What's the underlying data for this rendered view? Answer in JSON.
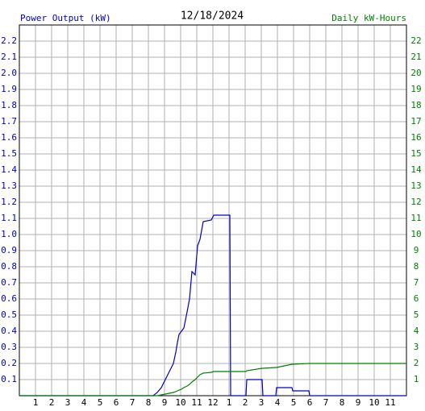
{
  "chart_data": {
    "type": "line",
    "title": "12/18/2024",
    "y_label": "Power Output (kW)",
    "y2_label": "Daily kW-Hours",
    "x": [
      0,
      8.3,
      8.55,
      8.8,
      9.05,
      9.3,
      9.55,
      9.7,
      9.8,
      9.9,
      10.05,
      10.2,
      10.4,
      10.55,
      10.7,
      10.9,
      11.05,
      11.2,
      11.4,
      11.9,
      12.05,
      13.05,
      13.1,
      14.05,
      14.1,
      15.05,
      15.1,
      15.9,
      15.95,
      16.9,
      16.95,
      17.95,
      18.0,
      24.0
    ],
    "series": [
      {
        "color": "#0000c0",
        "values": [
          0,
          0,
          0.02,
          0.05,
          0.1,
          0.15,
          0.2,
          0.27,
          0.33,
          0.38,
          0.4,
          0.42,
          0.52,
          0.6,
          0.77,
          0.75,
          0.93,
          0.97,
          1.08,
          1.09,
          1.12,
          1.12,
          0,
          0,
          0.1,
          0.1,
          0,
          0,
          0.05,
          0.05,
          0.03,
          0.03,
          0,
          0
        ]
      },
      {
        "color": "#008000",
        "axis": "y2",
        "values": [
          0,
          0,
          0,
          0.05,
          0.1,
          0.15,
          0.2,
          0.25,
          0.3,
          0.35,
          0.4,
          0.5,
          0.6,
          0.7,
          0.85,
          1.0,
          1.15,
          1.3,
          1.4,
          1.45,
          1.5,
          1.5,
          1.5,
          1.5,
          1.55,
          1.7,
          1.7,
          1.75,
          1.75,
          1.95,
          1.95,
          2.0,
          2.0,
          2.0
        ]
      }
    ],
    "xlim": [
      0,
      24
    ],
    "xticks": [
      1,
      2,
      3,
      4,
      5,
      6,
      7,
      8,
      9,
      10,
      11,
      12,
      {
        "value": 13,
        "label": "1"
      },
      {
        "value": 14,
        "label": "2"
      },
      {
        "value": 15,
        "label": "3"
      },
      {
        "value": 16,
        "label": "4"
      },
      {
        "value": 17,
        "label": "5"
      },
      {
        "value": 18,
        "label": "6"
      },
      {
        "value": 19,
        "label": "7"
      },
      {
        "value": 20,
        "label": "8"
      },
      {
        "value": 21,
        "label": "9"
      },
      {
        "value": 22,
        "label": "10"
      },
      {
        "value": 23,
        "label": "11"
      }
    ],
    "ylim": [
      0,
      2.3
    ],
    "yticks": [
      0.1,
      0.2,
      0.3,
      0.4,
      0.5,
      0.6,
      0.7,
      0.8,
      0.9,
      {
        "value": 1,
        "label": "1.0"
      },
      1.1,
      1.2,
      1.3,
      1.4,
      1.5,
      1.6,
      1.7,
      1.8,
      1.9,
      {
        "value": 2,
        "label": "2.0"
      },
      2.1,
      2.2
    ],
    "y2lim": [
      0,
      23
    ],
    "y2ticks": [
      1,
      2,
      3,
      4,
      5,
      6,
      7,
      8,
      9,
      10,
      11,
      12,
      13,
      14,
      15,
      16,
      17,
      18,
      19,
      20,
      21,
      22
    ],
    "y_color": "#0000c0",
    "y2_color": "#008000",
    "grid": true
  }
}
